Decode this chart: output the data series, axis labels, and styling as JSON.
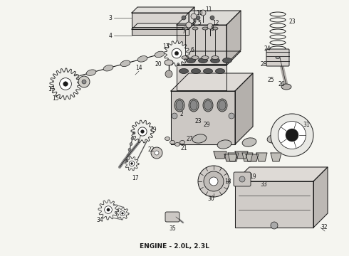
{
  "title": "ENGINE - 2.0L, 2.3L",
  "title_fontsize": 6.5,
  "title_fontweight": "bold",
  "bg_color": "#f5f5f0",
  "line_color": "#1a1a1a",
  "fig_width": 4.9,
  "fig_height": 3.6,
  "dpi": 100
}
